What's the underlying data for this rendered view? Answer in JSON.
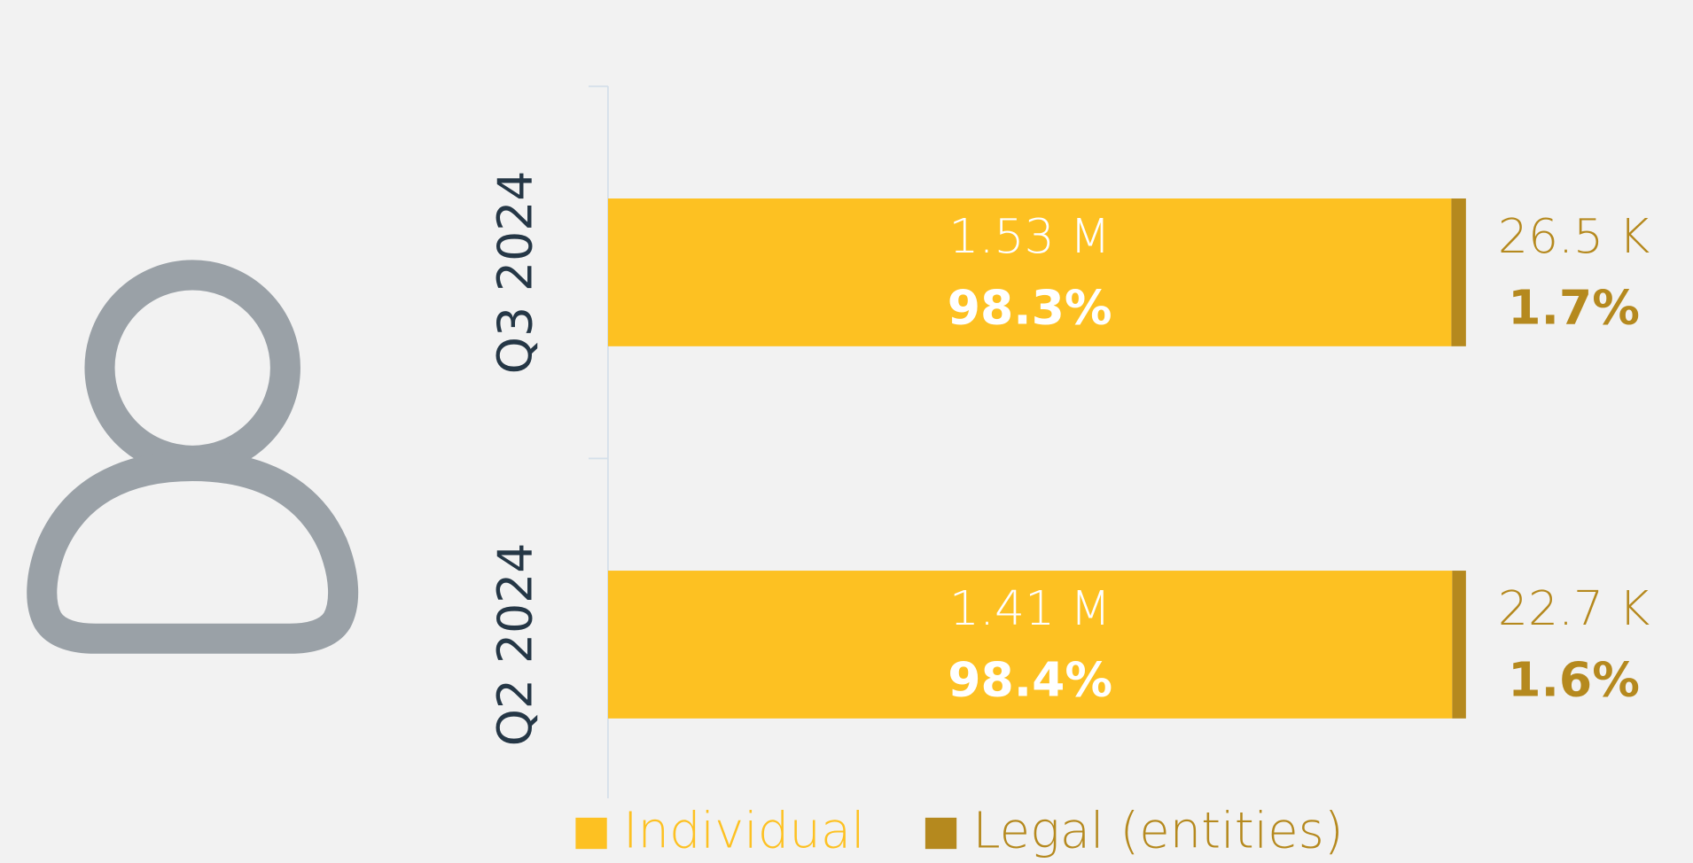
{
  "chart_data": {
    "type": "stacked_bar_horizontal",
    "categories": [
      "Q3 2024",
      "Q2 2024"
    ],
    "series": [
      {
        "name": "Individual",
        "color": "#FDC122",
        "values": [
          98.3,
          98.4
        ],
        "value_labels": [
          "98.3%",
          "98.4%"
        ],
        "counts": [
          1530000,
          1410000
        ],
        "count_labels": [
          "1.53 M",
          "1.41 M"
        ]
      },
      {
        "name": "Legal (entities)",
        "color": "#B5891E",
        "values": [
          1.7,
          1.6
        ],
        "value_labels": [
          "1.7%",
          "1.6%"
        ],
        "counts": [
          26500,
          22700
        ],
        "count_labels": [
          "26.5 K",
          "22.7 K"
        ]
      }
    ],
    "legend": "bottom"
  }
}
